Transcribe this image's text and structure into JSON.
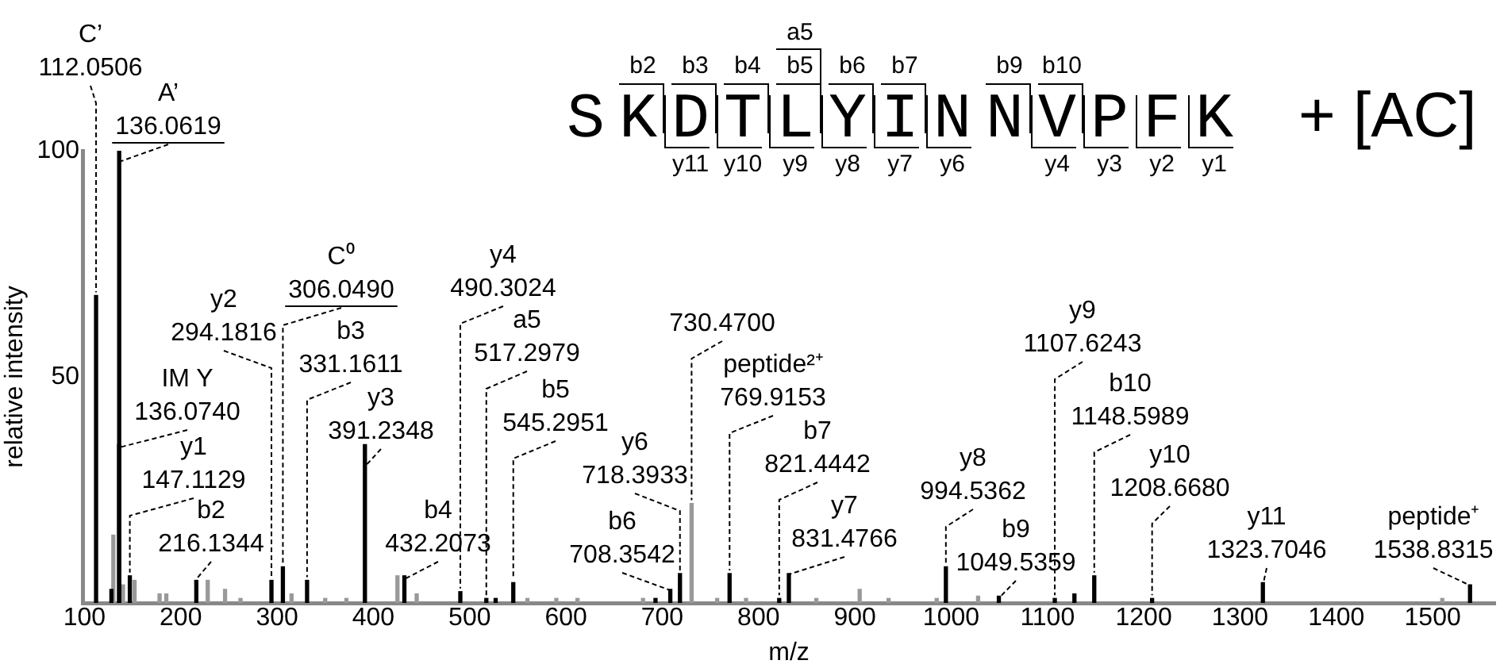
{
  "chart_data": {
    "type": "bar",
    "xlabel": "m/z",
    "ylabel": "relative intensity",
    "xlim": [
      98,
      1565
    ],
    "xticks": [
      100,
      200,
      300,
      400,
      500,
      600,
      700,
      800,
      900,
      1000,
      1100,
      1200,
      1300,
      1400,
      1500
    ],
    "ylim": [
      0,
      100
    ],
    "yticks": [
      50,
      100
    ],
    "grid": false,
    "legend": false,
    "series": [
      {
        "color": "#000000",
        "x": [
          112.0506,
          128,
          136.0619,
          136.074,
          147.1129,
          216.1344,
          294.1816,
          306.049,
          331.1611,
          391.2348,
          432.2073,
          490.3024,
          517.2979,
          527,
          545.2951,
          693,
          708.3542,
          718.3933,
          769.9153,
          821.4442,
          831.4766,
          994.5362,
          1049.5359,
          1107.6243,
          1128,
          1148.5989,
          1208.668,
          1323.7046,
          1538.8315
        ],
        "values": [
          68,
          3,
          100,
          35,
          6,
          5,
          5,
          8,
          5,
          35,
          6,
          2.5,
          1,
          1,
          4.5,
          1,
          3,
          6.5,
          6.5,
          1,
          6.5,
          8,
          1.5,
          1,
          2,
          6,
          1,
          4.5,
          4
        ]
      },
      {
        "color": "#999999",
        "x": [
          130,
          140,
          152,
          178,
          185,
          228,
          246,
          262,
          315,
          350,
          372,
          425,
          445,
          560,
          590,
          612,
          680,
          730.47,
          757,
          787,
          860,
          905,
          935,
          985,
          1028,
          1510
        ],
        "values": [
          15,
          4,
          5,
          2,
          2,
          5,
          3,
          1,
          2,
          1,
          1,
          6,
          2,
          1,
          1,
          1,
          1,
          22,
          1,
          1,
          1,
          3,
          1,
          1,
          1.5,
          1
        ]
      }
    ],
    "annotations": [
      {
        "text": "C’\n112.0506",
        "x": 112.0506,
        "y": 68
      },
      {
        "text": "A’\n136.0619",
        "x": 136.0619,
        "y": 100
      },
      {
        "text": "IM Y\n136.0740",
        "x": 136.074,
        "y": 35
      },
      {
        "text": "y1\n147.1129",
        "x": 147.1129,
        "y": 6
      },
      {
        "text": "b2\n216.1344",
        "x": 216.1344,
        "y": 5
      },
      {
        "text": "y2\n294.1816",
        "x": 294.1816,
        "y": 5
      },
      {
        "text": "C⁰\n306.0490",
        "x": 306.049,
        "y": 8
      },
      {
        "text": "b3\n331.1611",
        "x": 331.1611,
        "y": 5
      },
      {
        "text": "y3\n391.2348",
        "x": 391.2348,
        "y": 35
      },
      {
        "text": "b4\n432.2073",
        "x": 432.2073,
        "y": 6
      },
      {
        "text": "y4\n490.3024",
        "x": 490.3024,
        "y": 2.5
      },
      {
        "text": "a5\n517.2979",
        "x": 517.2979,
        "y": 1
      },
      {
        "text": "b5\n545.2951",
        "x": 545.2951,
        "y": 4.5
      },
      {
        "text": "y6\n718.3933",
        "x": 718.3933,
        "y": 6.5
      },
      {
        "text": "b6\n708.3542",
        "x": 708.3542,
        "y": 3
      },
      {
        "text": "730.4700",
        "x": 730.47,
        "y": 22
      },
      {
        "text": "peptide²⁺\n769.9153",
        "x": 769.9153,
        "y": 6.5
      },
      {
        "text": "b7\n821.4442",
        "x": 821.4442,
        "y": 1
      },
      {
        "text": "y7\n831.4766",
        "x": 831.4766,
        "y": 6.5
      },
      {
        "text": "y8\n994.5362",
        "x": 994.5362,
        "y": 8
      },
      {
        "text": "b9\n1049.5359",
        "x": 1049.5359,
        "y": 1.5
      },
      {
        "text": "y9\n1107.6243",
        "x": 1107.6243,
        "y": 1
      },
      {
        "text": "b10\n1148.5989",
        "x": 1148.5989,
        "y": 6
      },
      {
        "text": "y10\n1208.6680",
        "x": 1208.668,
        "y": 1
      },
      {
        "text": "y11\n1323.7046",
        "x": 1323.7046,
        "y": 4.5
      },
      {
        "text": "peptide⁺\n1538.8315",
        "x": 1538.8315,
        "y": 4
      },
      "SKDTLYINNVPFK",
      "+ [AC]",
      "a5",
      "b2",
      "b3",
      "b4",
      "b5",
      "b6",
      "b7",
      "b9",
      "b10",
      "y11",
      "y10",
      "y9",
      "y8",
      "y7",
      "y6",
      "y4",
      "y3",
      "y2",
      "y1"
    ]
  }
}
